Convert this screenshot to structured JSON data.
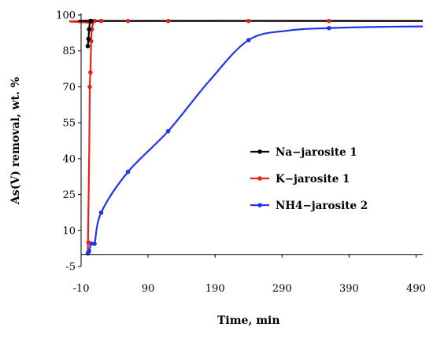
{
  "chart_data": {
    "type": "line",
    "title": "",
    "xlabel": "Time, min",
    "ylabel": "As(V) removal, wt. %",
    "xlim": [
      -10,
      500
    ],
    "ylim": [
      -5,
      100
    ],
    "xticks": [
      -10,
      90,
      190,
      290,
      390,
      490
    ],
    "yticks": [
      -5,
      10,
      25,
      40,
      55,
      70,
      85,
      100
    ],
    "grid": false,
    "legend_position": "right",
    "series": [
      {
        "name": "Na−jarosite 1",
        "color": "#000000",
        "points": [
          [
            0,
            87
          ],
          [
            1,
            90
          ],
          [
            2,
            94
          ],
          [
            4,
            97.5
          ],
          [
            5,
            97.5
          ]
        ],
        "curve": [
          [
            0,
            87
          ],
          [
            1,
            90
          ],
          [
            2,
            94
          ],
          [
            3,
            96.5
          ],
          [
            5,
            97.5
          ],
          [
            30,
            97.5
          ],
          [
            500,
            97.5
          ]
        ]
      },
      {
        "name": "K−jarosite 1",
        "color": "#e8211b",
        "points": [
          [
            1,
            5
          ],
          [
            3,
            70
          ],
          [
            4,
            76
          ],
          [
            5,
            89
          ],
          [
            6,
            94
          ],
          [
            10,
            97.5
          ],
          [
            20,
            97.5
          ],
          [
            60,
            97.5
          ],
          [
            120,
            97.5
          ],
          [
            240,
            97.5
          ],
          [
            360,
            97.5
          ]
        ],
        "curve": [
          [
            0,
            0
          ],
          [
            2,
            40
          ],
          [
            3,
            70
          ],
          [
            4,
            76
          ],
          [
            5,
            89
          ],
          [
            6,
            94
          ],
          [
            8,
            96.5
          ],
          [
            10,
            97.5
          ],
          [
            500,
            97.5
          ]
        ]
      },
      {
        "name": "NH4−jarosite 2",
        "color": "#1f36e6",
        "points": [
          [
            0,
            0.5
          ],
          [
            1,
            1
          ],
          [
            2,
            1.5
          ],
          [
            5,
            4.5
          ],
          [
            10,
            4.5
          ],
          [
            20,
            17.5
          ],
          [
            60,
            34.5
          ],
          [
            120,
            51.5
          ],
          [
            240,
            89.5
          ],
          [
            360,
            94.5
          ]
        ],
        "curve": [
          [
            0,
            0.5
          ],
          [
            1,
            1
          ],
          [
            2,
            1.5
          ],
          [
            5,
            4.5
          ],
          [
            10,
            4.5
          ],
          [
            20,
            17.5
          ],
          [
            60,
            34.5
          ],
          [
            120,
            51.5
          ],
          [
            180,
            72
          ],
          [
            240,
            89.5
          ],
          [
            300,
            93.5
          ],
          [
            360,
            94.5
          ],
          [
            430,
            95
          ],
          [
            500,
            95.2
          ]
        ]
      }
    ]
  }
}
